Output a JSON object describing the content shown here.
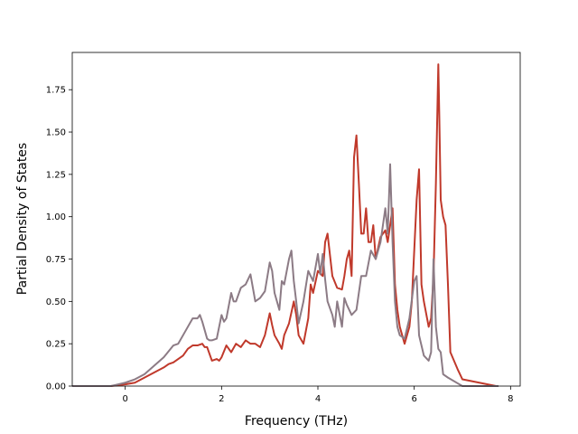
{
  "chart_data": {
    "type": "line",
    "title": "",
    "xlabel": "Frequency (THz)",
    "ylabel": "Partial Density of States",
    "xlim": [
      -1.1,
      8.2
    ],
    "ylim": [
      0,
      1.97
    ],
    "xticks": [
      0,
      2,
      4,
      6,
      8
    ],
    "yticks": [
      0.0,
      0.25,
      0.5,
      0.75,
      1.0,
      1.25,
      1.5,
      1.75
    ],
    "xtick_labels": [
      "0",
      "2",
      "4",
      "6",
      "8"
    ],
    "ytick_labels": [
      "0.00",
      "0.25",
      "0.50",
      "0.75",
      "1.00",
      "1.25",
      "1.50",
      "1.75"
    ],
    "grid": false,
    "series": [
      {
        "color": "#c0392b",
        "x": [
          -1.1,
          -0.3,
          0.0,
          0.2,
          0.4,
          0.6,
          0.8,
          0.9,
          1.0,
          1.1,
          1.2,
          1.3,
          1.4,
          1.5,
          1.6,
          1.65,
          1.7,
          1.8,
          1.9,
          1.95,
          2.0,
          2.1,
          2.2,
          2.3,
          2.4,
          2.5,
          2.6,
          2.7,
          2.8,
          2.9,
          3.0,
          3.05,
          3.1,
          3.2,
          3.25,
          3.3,
          3.4,
          3.5,
          3.55,
          3.6,
          3.7,
          3.8,
          3.85,
          3.9,
          4.0,
          4.1,
          4.15,
          4.2,
          4.3,
          4.4,
          4.5,
          4.55,
          4.6,
          4.65,
          4.7,
          4.75,
          4.8,
          4.85,
          4.9,
          4.95,
          5.0,
          5.05,
          5.1,
          5.15,
          5.2,
          5.3,
          5.4,
          5.45,
          5.5,
          5.55,
          5.6,
          5.65,
          5.7,
          5.75,
          5.8,
          5.9,
          5.95,
          6.0,
          6.05,
          6.1,
          6.15,
          6.2,
          6.3,
          6.35,
          6.4,
          6.45,
          6.5,
          6.52,
          6.55,
          6.6,
          6.65,
          6.7,
          6.75,
          6.9,
          7.0,
          7.7
        ],
        "y": [
          0.0,
          0.0,
          0.01,
          0.02,
          0.05,
          0.08,
          0.11,
          0.13,
          0.14,
          0.16,
          0.18,
          0.22,
          0.24,
          0.24,
          0.25,
          0.23,
          0.23,
          0.15,
          0.16,
          0.15,
          0.17,
          0.24,
          0.2,
          0.25,
          0.23,
          0.27,
          0.25,
          0.25,
          0.23,
          0.3,
          0.43,
          0.36,
          0.3,
          0.25,
          0.22,
          0.3,
          0.37,
          0.5,
          0.42,
          0.3,
          0.25,
          0.4,
          0.6,
          0.55,
          0.68,
          0.65,
          0.85,
          0.9,
          0.65,
          0.58,
          0.57,
          0.65,
          0.75,
          0.8,
          0.65,
          1.35,
          1.48,
          1.2,
          0.9,
          0.9,
          1.05,
          0.85,
          0.85,
          0.95,
          0.75,
          0.88,
          0.92,
          0.85,
          0.95,
          1.05,
          0.6,
          0.45,
          0.35,
          0.3,
          0.25,
          0.35,
          0.5,
          0.8,
          1.1,
          1.28,
          0.6,
          0.5,
          0.35,
          0.4,
          0.65,
          1.2,
          1.9,
          1.6,
          1.1,
          1.0,
          0.95,
          0.6,
          0.2,
          0.1,
          0.04,
          0.0
        ]
      },
      {
        "color": "#8c7b85",
        "x": [
          -1.1,
          -0.3,
          0.0,
          0.2,
          0.4,
          0.6,
          0.8,
          1.0,
          1.1,
          1.2,
          1.3,
          1.4,
          1.5,
          1.55,
          1.6,
          1.7,
          1.75,
          1.8,
          1.9,
          2.0,
          2.05,
          2.1,
          2.2,
          2.25,
          2.3,
          2.4,
          2.5,
          2.6,
          2.65,
          2.7,
          2.8,
          2.9,
          3.0,
          3.05,
          3.1,
          3.2,
          3.25,
          3.3,
          3.4,
          3.45,
          3.5,
          3.55,
          3.6,
          3.7,
          3.8,
          3.85,
          3.9,
          4.0,
          4.05,
          4.1,
          4.15,
          4.2,
          4.3,
          4.35,
          4.4,
          4.5,
          4.55,
          4.6,
          4.7,
          4.8,
          4.9,
          5.0,
          5.1,
          5.2,
          5.3,
          5.4,
          5.45,
          5.5,
          5.55,
          5.6,
          5.65,
          5.7,
          5.8,
          5.9,
          6.0,
          6.05,
          6.1,
          6.2,
          6.3,
          6.35,
          6.4,
          6.45,
          6.5,
          6.55,
          6.6,
          6.7,
          7.0,
          7.75
        ],
        "y": [
          0.0,
          0.0,
          0.02,
          0.04,
          0.07,
          0.12,
          0.17,
          0.24,
          0.25,
          0.3,
          0.35,
          0.4,
          0.4,
          0.42,
          0.38,
          0.28,
          0.27,
          0.27,
          0.28,
          0.42,
          0.38,
          0.4,
          0.55,
          0.5,
          0.5,
          0.58,
          0.6,
          0.66,
          0.58,
          0.5,
          0.52,
          0.56,
          0.73,
          0.68,
          0.55,
          0.45,
          0.62,
          0.6,
          0.75,
          0.8,
          0.62,
          0.5,
          0.37,
          0.5,
          0.68,
          0.65,
          0.62,
          0.78,
          0.66,
          0.78,
          0.63,
          0.5,
          0.42,
          0.35,
          0.5,
          0.35,
          0.52,
          0.48,
          0.42,
          0.45,
          0.65,
          0.65,
          0.8,
          0.75,
          0.85,
          1.05,
          0.9,
          1.31,
          0.85,
          0.5,
          0.35,
          0.3,
          0.28,
          0.4,
          0.62,
          0.65,
          0.3,
          0.18,
          0.15,
          0.2,
          0.75,
          0.35,
          0.22,
          0.2,
          0.07,
          0.05,
          0.0,
          0.0
        ]
      }
    ]
  }
}
